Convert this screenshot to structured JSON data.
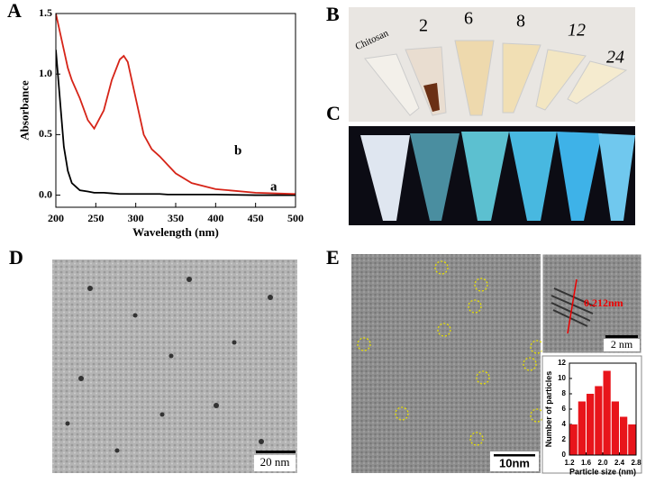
{
  "chart_data": [
    {
      "type": "line",
      "xlabel": "Wavelength (nm)",
      "ylabel": "Absorbance",
      "x": [
        200,
        205,
        210,
        215,
        220,
        230,
        240,
        248,
        260,
        270,
        280,
        285,
        290,
        300,
        310,
        320,
        330,
        340,
        350,
        370,
        400,
        450,
        500
      ],
      "series": [
        {
          "name": "a",
          "color": "#000000",
          "values": [
            1.2,
            0.8,
            0.4,
            0.2,
            0.1,
            0.04,
            0.03,
            0.02,
            0.02,
            0.015,
            0.01,
            0.01,
            0.01,
            0.01,
            0.01,
            0.01,
            0.01,
            0.005,
            0.005,
            0.005,
            0.005,
            0.0,
            0.0
          ]
        },
        {
          "name": "b",
          "color": "#d62418",
          "values": [
            1.5,
            1.35,
            1.2,
            1.05,
            0.95,
            0.8,
            0.62,
            0.55,
            0.7,
            0.95,
            1.12,
            1.15,
            1.1,
            0.8,
            0.5,
            0.38,
            0.32,
            0.25,
            0.18,
            0.1,
            0.05,
            0.02,
            0.01
          ]
        }
      ],
      "xlim": [
        200,
        500
      ],
      "xticks": [
        200,
        250,
        300,
        350,
        400,
        450,
        500
      ],
      "ylim": [
        -0.1,
        1.5
      ],
      "yticks": [
        {
          "value": 0,
          "label": "0.0"
        },
        0.5,
        {
          "value": 1,
          "label": "1.0"
        },
        1.5
      ]
    },
    {
      "type": "histogram",
      "xlabel": "Particle size (nm)",
      "ylabel": "Number of particles",
      "color": "#e8151b",
      "bins": [
        1.2,
        1.4,
        1.6,
        1.8,
        2.0,
        2.2,
        2.4,
        2.6,
        2.8
      ],
      "values": [
        4,
        7,
        8,
        9,
        11,
        7,
        5,
        4
      ],
      "xlim": [
        1.2,
        2.8
      ],
      "xticks": [
        1.2,
        1.6,
        {
          "value": 2,
          "label": "2.0"
        },
        2.4,
        2.8
      ],
      "ylim": [
        0,
        12
      ],
      "yticks": [
        0,
        2,
        4,
        6,
        8,
        10,
        12
      ]
    }
  ],
  "panels": {
    "labels": [
      "A",
      "B",
      "C",
      "D",
      "E"
    ],
    "tubes": [
      "Chitosan",
      "2",
      "6",
      "8",
      "12",
      "24"
    ],
    "scale_d": "20 nm",
    "scale_e": "10nm",
    "scale_hr": "2 nm",
    "lattice": "0.212nm"
  }
}
